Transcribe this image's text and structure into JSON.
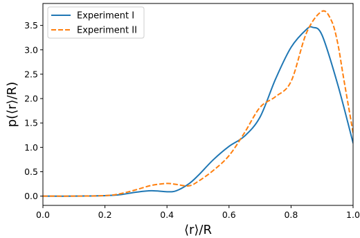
{
  "chart_data": {
    "type": "line",
    "xlabel": "⟨r⟩/R",
    "ylabel": "p(⟨r⟩/R)",
    "xlim": [
      0.0,
      1.0
    ],
    "ylim": [
      -0.19,
      3.95
    ],
    "xticks": [
      0.0,
      0.2,
      0.4,
      0.6,
      0.8,
      1.0
    ],
    "xtick_labels": [
      "0.0",
      "0.2",
      "0.4",
      "0.6",
      "0.8",
      "1.0"
    ],
    "yticks": [
      0.0,
      0.5,
      1.0,
      1.5,
      2.0,
      2.5,
      3.0,
      3.5
    ],
    "ytick_labels": [
      "0.0",
      "0.5",
      "1.0",
      "1.5",
      "2.0",
      "2.5",
      "3.0",
      "3.5"
    ],
    "grid": false,
    "legend_position": "top-left",
    "series": [
      {
        "name": "Experiment I",
        "color": "#1f77b4",
        "style": "solid",
        "x": [
          0.0,
          0.1,
          0.2,
          0.25,
          0.3,
          0.35,
          0.4,
          0.43,
          0.47,
          0.5,
          0.55,
          0.6,
          0.65,
          0.7,
          0.75,
          0.8,
          0.85,
          0.87,
          0.9,
          0.95,
          1.0
        ],
        "y": [
          0.0,
          0.0,
          0.01,
          0.03,
          0.08,
          0.11,
          0.09,
          0.11,
          0.25,
          0.42,
          0.75,
          1.02,
          1.23,
          1.62,
          2.4,
          3.05,
          3.42,
          3.46,
          3.3,
          2.3,
          1.09
        ]
      },
      {
        "name": "Experiment II",
        "color": "#ff7f0e",
        "style": "dashed",
        "x": [
          0.0,
          0.1,
          0.2,
          0.25,
          0.3,
          0.35,
          0.4,
          0.43,
          0.47,
          0.5,
          0.55,
          0.6,
          0.65,
          0.7,
          0.75,
          0.8,
          0.85,
          0.9,
          0.93,
          0.95,
          0.97,
          1.0
        ],
        "y": [
          0.0,
          0.0,
          0.01,
          0.05,
          0.13,
          0.22,
          0.26,
          0.24,
          0.21,
          0.3,
          0.53,
          0.83,
          1.3,
          1.82,
          2.04,
          2.35,
          3.35,
          3.79,
          3.6,
          3.15,
          2.4,
          1.3
        ]
      }
    ]
  }
}
